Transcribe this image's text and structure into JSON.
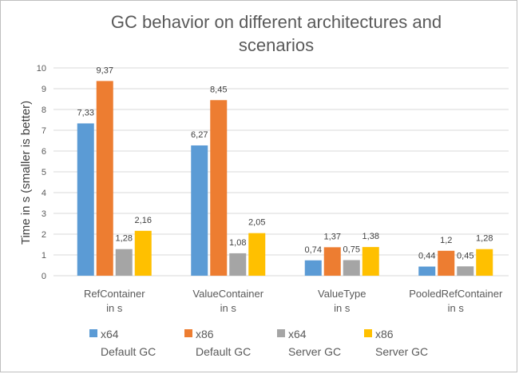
{
  "chart_data": {
    "type": "bar",
    "title": "GC behavior on different architectures and scenarios",
    "title_lines": [
      "GC behavior on different architectures and",
      "scenarios"
    ],
    "ylabel": "Time in s (smaller is better)",
    "xlabel": "",
    "ylim": [
      0,
      10
    ],
    "yticks": [
      "0",
      "1",
      "2",
      "3",
      "4",
      "5",
      "6",
      "7",
      "8",
      "9",
      "10"
    ],
    "grid": true,
    "legend_position": "bottom",
    "categories": [
      {
        "line1": "RefContainer",
        "line2": "in s"
      },
      {
        "line1": "ValueContainer",
        "line2": "in s"
      },
      {
        "line1": "ValueType",
        "line2": "in s"
      },
      {
        "line1": "PooledRefContainer",
        "line2": "in s"
      }
    ],
    "series": [
      {
        "name_line1": "x64",
        "name_line2": "Default GC",
        "color": "#5b9bd5",
        "values": [
          7.33,
          6.27,
          0.74,
          0.44
        ],
        "labels": [
          "7,33",
          "6,27",
          "0,74",
          "0,44"
        ]
      },
      {
        "name_line1": "x86",
        "name_line2": "Default GC",
        "color": "#ed7d31",
        "values": [
          9.37,
          8.45,
          1.37,
          1.2
        ],
        "labels": [
          "9,37",
          "8,45",
          "1,37",
          "1,2"
        ]
      },
      {
        "name_line1": "x64",
        "name_line2": "Server GC",
        "color": "#a5a5a5",
        "values": [
          1.28,
          1.08,
          0.75,
          0.45
        ],
        "labels": [
          "1,28",
          "1,08",
          "0,75",
          "0,45"
        ]
      },
      {
        "name_line1": "x86",
        "name_line2": "Server GC",
        "color": "#ffc000",
        "values": [
          2.16,
          2.05,
          1.38,
          1.28
        ],
        "labels": [
          "2,16",
          "2,05",
          "1,38",
          "1,28"
        ]
      }
    ]
  }
}
